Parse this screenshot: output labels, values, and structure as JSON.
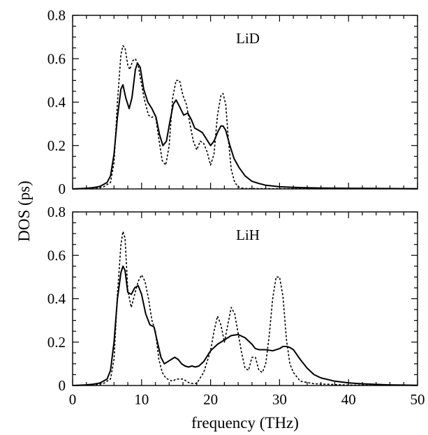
{
  "chart_data": [
    {
      "type": "line",
      "panel_label": "LiD",
      "xlim": [
        0,
        50
      ],
      "ylim": [
        0,
        0.8
      ],
      "xticks": [
        0,
        10,
        20,
        30,
        40,
        50
      ],
      "yticks": [
        0,
        0.2,
        0.4,
        0.6,
        0.8
      ],
      "ytick_labels": [
        "0",
        "0.2",
        "0.4",
        "0.6",
        "0.8"
      ],
      "series": [
        {
          "style": "solid",
          "x": [
            0,
            2,
            3,
            4,
            5,
            5.5,
            6,
            6.5,
            7,
            7.3,
            7.7,
            8.2,
            8.6,
            9.1,
            9.4,
            9.8,
            10.3,
            10.9,
            11.5,
            12.1,
            12.6,
            13.1,
            13.6,
            14.1,
            14.6,
            15.0,
            15.5,
            16.1,
            16.7,
            17.2,
            17.7,
            18.3,
            18.8,
            19.4,
            20.0,
            20.5,
            21.0,
            21.5,
            21.8,
            22.2,
            22.8,
            23.4,
            24.1,
            25,
            26,
            27,
            28,
            30,
            33,
            36,
            40,
            45,
            50
          ],
          "y": [
            0,
            0.003,
            0.006,
            0.012,
            0.03,
            0.06,
            0.16,
            0.33,
            0.46,
            0.48,
            0.42,
            0.37,
            0.42,
            0.55,
            0.58,
            0.56,
            0.46,
            0.4,
            0.37,
            0.33,
            0.25,
            0.2,
            0.22,
            0.31,
            0.39,
            0.41,
            0.38,
            0.34,
            0.35,
            0.32,
            0.28,
            0.27,
            0.26,
            0.23,
            0.2,
            0.22,
            0.26,
            0.29,
            0.29,
            0.27,
            0.2,
            0.14,
            0.1,
            0.06,
            0.035,
            0.025,
            0.017,
            0.01,
            0.006,
            0.004,
            0.003,
            0.002,
            0.001
          ]
        },
        {
          "style": "dotted",
          "x": [
            0,
            3,
            4.5,
            5.5,
            6,
            6.5,
            7,
            7.3,
            7.6,
            8.0,
            8.3,
            8.7,
            9.1,
            9.5,
            10.0,
            10.5,
            11.0,
            11.5,
            12.0,
            12.5,
            13.0,
            13.5,
            14.0,
            14.5,
            15.0,
            15.5,
            16.0,
            16.5,
            17.0,
            17.5,
            18.0,
            18.5,
            19.0,
            19.5,
            20.0,
            20.5,
            21.0,
            21.5,
            21.8,
            22.2,
            22.6,
            23.0,
            23.5,
            24.0,
            24.5,
            25,
            30,
            40,
            50
          ],
          "y": [
            0,
            0.002,
            0.01,
            0.03,
            0.12,
            0.4,
            0.62,
            0.66,
            0.65,
            0.57,
            0.55,
            0.59,
            0.6,
            0.57,
            0.48,
            0.4,
            0.34,
            0.33,
            0.34,
            0.23,
            0.13,
            0.11,
            0.2,
            0.42,
            0.5,
            0.5,
            0.43,
            0.39,
            0.3,
            0.22,
            0.18,
            0.22,
            0.21,
            0.17,
            0.11,
            0.16,
            0.34,
            0.43,
            0.44,
            0.39,
            0.22,
            0.09,
            0.03,
            0.01,
            0.004,
            0.002,
            0.001,
            0.001,
            0.001
          ]
        }
      ]
    },
    {
      "type": "line",
      "panel_label": "LiH",
      "xlim": [
        0,
        50
      ],
      "ylim": [
        0,
        0.8
      ],
      "xticks": [
        0,
        10,
        20,
        30,
        40,
        50
      ],
      "yticks": [
        0,
        0.2,
        0.4,
        0.6,
        0.8
      ],
      "ytick_labels": [
        "0",
        "0.2",
        "0.4",
        "0.6",
        "0.8"
      ],
      "series": [
        {
          "style": "solid",
          "x": [
            0,
            2,
            3,
            4,
            5,
            5.5,
            6,
            6.5,
            7,
            7.3,
            7.6,
            8.0,
            8.5,
            9.0,
            9.5,
            10.0,
            10.6,
            11.2,
            11.8,
            12.3,
            12.8,
            13.3,
            13.8,
            14.3,
            14.8,
            15.3,
            15.8,
            16.3,
            16.8,
            17.3,
            17.8,
            18.3,
            19,
            20,
            21,
            22,
            23,
            24,
            25,
            26,
            26.5,
            27,
            28,
            29,
            30,
            30.5,
            31,
            31.5,
            32,
            33,
            34,
            35,
            36,
            38,
            40,
            42,
            44,
            46,
            48,
            50
          ],
          "y": [
            0,
            0.003,
            0.006,
            0.012,
            0.03,
            0.07,
            0.2,
            0.4,
            0.52,
            0.55,
            0.53,
            0.43,
            0.42,
            0.45,
            0.46,
            0.42,
            0.33,
            0.28,
            0.27,
            0.2,
            0.13,
            0.1,
            0.11,
            0.12,
            0.13,
            0.12,
            0.1,
            0.09,
            0.085,
            0.09,
            0.085,
            0.09,
            0.11,
            0.16,
            0.19,
            0.21,
            0.23,
            0.235,
            0.22,
            0.19,
            0.17,
            0.165,
            0.165,
            0.16,
            0.17,
            0.18,
            0.18,
            0.175,
            0.165,
            0.12,
            0.08,
            0.05,
            0.035,
            0.02,
            0.012,
            0.008,
            0.005,
            0.003,
            0.002,
            0.001
          ]
        },
        {
          "style": "dotted",
          "x": [
            0,
            3,
            4.5,
            5.5,
            6,
            6.5,
            7,
            7.3,
            7.6,
            8.0,
            8.5,
            9.0,
            9.5,
            10.0,
            10.5,
            11.0,
            11.5,
            12.0,
            12.5,
            13.0,
            13.5,
            14.0,
            14.5,
            15.0,
            16.0,
            17.0,
            18.0,
            19.0,
            20.0,
            20.5,
            21.0,
            21.5,
            22.0,
            22.5,
            23.0,
            23.5,
            24.0,
            24.5,
            25.0,
            25.5,
            26.0,
            26.5,
            27.0,
            27.5,
            28.0,
            28.5,
            29.0,
            29.5,
            30.0,
            30.5,
            31.0,
            31.5,
            32.0,
            32.5,
            33.0,
            35,
            40,
            50
          ],
          "y": [
            0,
            0.002,
            0.01,
            0.03,
            0.12,
            0.42,
            0.65,
            0.71,
            0.68,
            0.44,
            0.36,
            0.42,
            0.48,
            0.51,
            0.48,
            0.4,
            0.3,
            0.25,
            0.12,
            0.06,
            0.035,
            0.025,
            0.02,
            0.03,
            0.03,
            0.01,
            0.01,
            0.06,
            0.16,
            0.25,
            0.32,
            0.28,
            0.2,
            0.28,
            0.36,
            0.33,
            0.24,
            0.15,
            0.08,
            0.07,
            0.13,
            0.13,
            0.07,
            0.06,
            0.1,
            0.23,
            0.4,
            0.5,
            0.5,
            0.41,
            0.21,
            0.1,
            0.06,
            0.04,
            0.02,
            0.008,
            0.002,
            0.001
          ]
        }
      ]
    }
  ],
  "axes": {
    "xlabel": "frequency (THz)",
    "ylabel": "DOS (ps)"
  }
}
